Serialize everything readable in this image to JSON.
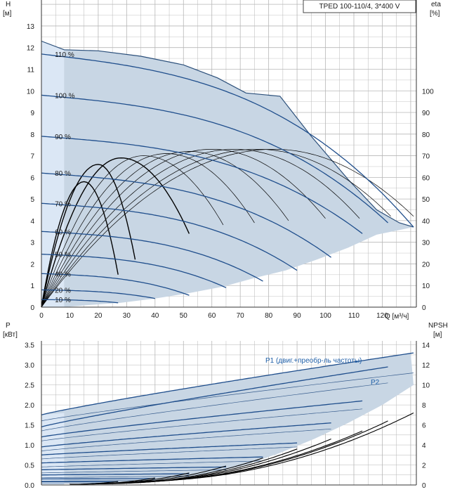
{
  "product_label": "TPED 100-110/4, 3*400 V",
  "colors": {
    "envelope_fill": "#c8d6e4",
    "envelope_stroke": "#2b4f7a",
    "speed_curve": "#1f4e8c",
    "efficiency_curve": "#000000",
    "grid": "#b7b7b7",
    "max_fill": "#dbe7f5"
  },
  "chart_data": [
    {
      "type": "line",
      "id": "head-chart",
      "ylabel_top": "H",
      "ylabel_unit": "[м]",
      "y2label_top": "eta",
      "y2label_unit": "[%]",
      "xlabel": "Q [м³/ч]",
      "xlim": [
        0,
        132
      ],
      "ylim": [
        0,
        14.2
      ],
      "y2lim": [
        0,
        142
      ],
      "x_ticks": [
        0,
        10,
        20,
        30,
        40,
        50,
        60,
        70,
        80,
        90,
        100,
        110,
        120
      ],
      "y_ticks": [
        0,
        1,
        2,
        3,
        4,
        5,
        6,
        7,
        8,
        9,
        10,
        11,
        12,
        13
      ],
      "y2_ticks": [
        0,
        10,
        20,
        30,
        40,
        50,
        60,
        70,
        80,
        90,
        100
      ],
      "grid": true,
      "speed_labels": [
        "110 %",
        "100 %",
        "90 %",
        "80 %",
        "70 %",
        "60 %",
        "50 %",
        "40 %",
        "20 %",
        "10 %"
      ],
      "speed_curves": [
        {
          "name": "110 %",
          "shutoff": 11.7,
          "qmax": 131,
          "hend": 3.7
        },
        {
          "name": "100 %",
          "shutoff": 9.8,
          "qmax": 122,
          "hend": 3.9
        },
        {
          "name": "90 %",
          "shutoff": 7.9,
          "qmax": 113,
          "hend": 3.4
        },
        {
          "name": "80 %",
          "shutoff": 6.2,
          "qmax": 102,
          "hend": 2.3
        },
        {
          "name": "70 %",
          "shutoff": 4.8,
          "qmax": 90,
          "hend": 1.7
        },
        {
          "name": "60 %",
          "shutoff": 3.5,
          "qmax": 78,
          "hend": 1.2
        },
        {
          "name": "50 %",
          "shutoff": 2.45,
          "qmax": 65,
          "hend": 0.9
        },
        {
          "name": "40 %",
          "shutoff": 1.55,
          "qmax": 52,
          "hend": 0.55
        },
        {
          "name": "20 %",
          "shutoff": 0.8,
          "qmax": 40,
          "hend": 0.4
        },
        {
          "name": "10 %",
          "shutoff": 0.35,
          "qmax": 27,
          "hend": 0.2
        }
      ],
      "envelope": {
        "top": [
          [
            0,
            12.3
          ],
          [
            8,
            11.9
          ],
          [
            20,
            11.85
          ],
          [
            35,
            11.6
          ],
          [
            50,
            11.2
          ],
          [
            62,
            10.6
          ],
          [
            72,
            9.9
          ],
          [
            84,
            9.75
          ],
          [
            95,
            7.9
          ],
          [
            108,
            5.9
          ],
          [
            118,
            4.5
          ],
          [
            126,
            3.9
          ],
          [
            131,
            3.7
          ]
        ],
        "bottom": [
          [
            131,
            3.7
          ],
          [
            118,
            3.35
          ],
          [
            108,
            2.75
          ],
          [
            97,
            2.2
          ],
          [
            86,
            1.7
          ],
          [
            75,
            1.35
          ],
          [
            64,
            0.95
          ],
          [
            52,
            0.65
          ],
          [
            40,
            0.4
          ],
          [
            28,
            0.2
          ],
          [
            17,
            0.1
          ],
          [
            8,
            0.0
          ]
        ]
      },
      "efficiency_curves": [
        {
          "peak_x": 15,
          "peak_eta": 58,
          "end_x": 27,
          "end_eta": 15
        },
        {
          "peak_x": 20,
          "peak_eta": 66,
          "end_x": 33,
          "end_eta": 22
        },
        {
          "peak_x": 28,
          "peak_eta": 69,
          "end_x": 52,
          "end_eta": 34
        },
        {
          "peak_x": 36,
          "peak_eta": 70,
          "end_x": 64,
          "end_eta": 38
        },
        {
          "peak_x": 44,
          "peak_eta": 71,
          "end_x": 75,
          "end_eta": 39
        },
        {
          "peak_x": 52,
          "peak_eta": 72,
          "end_x": 87,
          "end_eta": 40
        },
        {
          "peak_x": 60,
          "peak_eta": 73,
          "end_x": 100,
          "end_eta": 41
        },
        {
          "peak_x": 68,
          "peak_eta": 73,
          "end_x": 112,
          "end_eta": 41
        },
        {
          "peak_x": 76,
          "peak_eta": 73,
          "end_x": 123,
          "end_eta": 42
        },
        {
          "peak_x": 82,
          "peak_eta": 73,
          "end_x": 131,
          "end_eta": 42
        }
      ]
    },
    {
      "type": "line",
      "id": "power-chart",
      "ylabel_top": "P",
      "ylabel_unit": "[кВт]",
      "y2label_top": "NPSH",
      "y2label_unit": "[м]",
      "xlim": [
        0,
        132
      ],
      "ylim": [
        0,
        3.6
      ],
      "y2lim": [
        0,
        14.4
      ],
      "y_ticks": [
        0.0,
        0.5,
        1.0,
        1.5,
        2.0,
        2.5,
        3.0,
        3.5
      ],
      "y_tick_labels": [
        "0.0",
        "0.5",
        "1.0",
        "1.5",
        "2.0",
        "2.5",
        "3.0",
        "3.5"
      ],
      "y2_ticks": [
        0,
        2,
        4,
        6,
        8,
        10,
        12,
        14
      ],
      "grid": true,
      "series_labels": {
        "p1": "P1 (двиг.+преобр-ль частоты)",
        "p2": "P2"
      },
      "power_curves": [
        {
          "p1_start": 1.75,
          "p1_end": 3.3,
          "p2_start": 1.6,
          "p2_end": 2.8,
          "qmax": 131
        },
        {
          "p1_start": 1.45,
          "p1_end": 2.95,
          "p2_start": 1.35,
          "p2_end": 2.55,
          "qmax": 122
        },
        {
          "p1_start": 1.2,
          "p1_end": 2.1,
          "p2_start": 1.1,
          "p2_end": 1.9,
          "qmax": 113
        },
        {
          "p1_start": 0.95,
          "p1_end": 1.55,
          "p2_start": 0.85,
          "p2_end": 1.4,
          "qmax": 102
        },
        {
          "p1_start": 0.75,
          "p1_end": 1.05,
          "p2_start": 0.65,
          "p2_end": 0.95,
          "qmax": 90
        },
        {
          "p1_start": 0.55,
          "p1_end": 0.7,
          "p2_start": 0.45,
          "p2_end": 0.6,
          "qmax": 78
        },
        {
          "p1_start": 0.38,
          "p1_end": 0.45,
          "p2_start": 0.3,
          "p2_end": 0.38,
          "qmax": 65
        },
        {
          "p1_start": 0.25,
          "p1_end": 0.28,
          "p2_start": 0.18,
          "p2_end": 0.22,
          "qmax": 52
        },
        {
          "p1_start": 0.15,
          "p1_end": 0.16,
          "p2_start": 0.1,
          "p2_end": 0.11,
          "qmax": 40
        },
        {
          "p1_start": 0.08,
          "p1_end": 0.08,
          "p2_start": 0.05,
          "p2_end": 0.05,
          "qmax": 27
        }
      ],
      "npsh_curves": [
        {
          "start_x": 35,
          "start_y": 0.4,
          "end_x": 131,
          "end_y": 7.2
        },
        {
          "start_x": 33,
          "start_y": 0.35,
          "end_x": 122,
          "end_y": 6.4
        },
        {
          "start_x": 31,
          "start_y": 0.3,
          "end_x": 113,
          "end_y": 5.4
        },
        {
          "start_x": 29,
          "start_y": 0.25,
          "end_x": 102,
          "end_y": 4.6
        },
        {
          "start_x": 27,
          "start_y": 0.2,
          "end_x": 90,
          "end_y": 3.6
        },
        {
          "start_x": 25,
          "start_y": 0.15,
          "end_x": 78,
          "end_y": 2.7
        },
        {
          "start_x": 22,
          "start_y": 0.12,
          "end_x": 65,
          "end_y": 1.9
        },
        {
          "start_x": 18,
          "start_y": 0.1,
          "end_x": 52,
          "end_y": 1.2
        },
        {
          "start_x": 14,
          "start_y": 0.08,
          "end_x": 40,
          "end_y": 0.7
        },
        {
          "start_x": 10,
          "start_y": 0.06,
          "end_x": 27,
          "end_y": 0.35
        }
      ]
    }
  ]
}
